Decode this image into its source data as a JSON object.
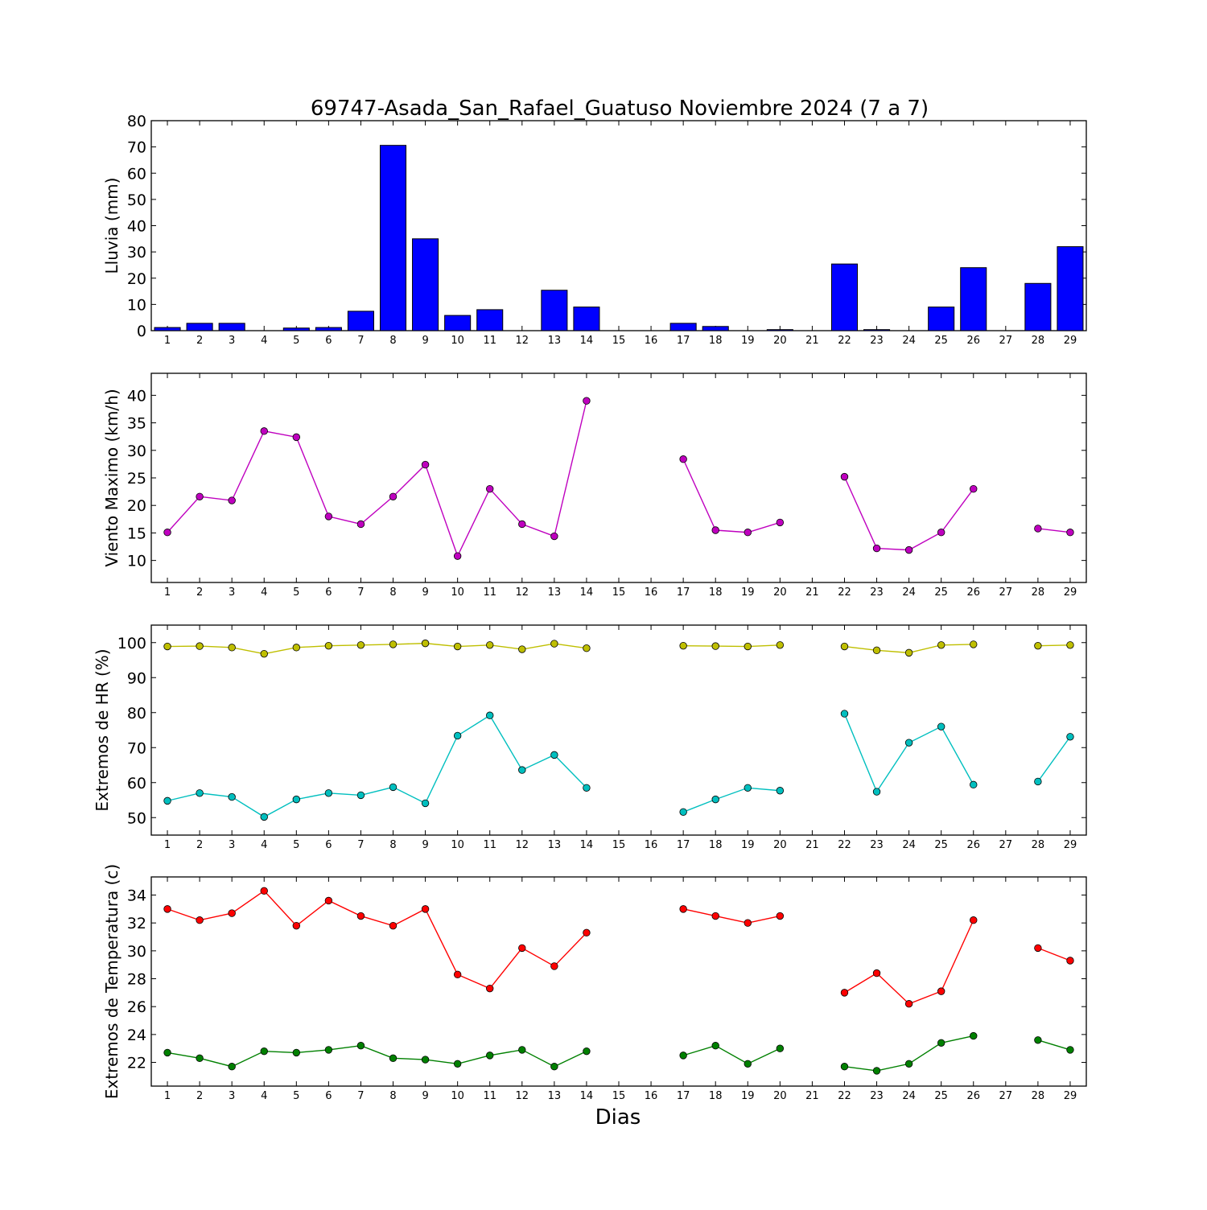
{
  "title": "69747-Asada_San_Rafael_Guatuso Noviembre 2024  (7 a 7)",
  "xlabel": "Dias",
  "colors": {
    "rain": "#0000ff",
    "wind": "#bf00bf",
    "hr_max": "#bfbf00",
    "hr_min": "#00bfbf",
    "temp_max": "#ff0000",
    "temp_min": "#008000"
  },
  "chart_data": [
    {
      "type": "bar",
      "ylabel": "Lluvia (mm)",
      "ylim": [
        0,
        80
      ],
      "yticks": [
        0,
        10,
        20,
        30,
        40,
        50,
        60,
        70,
        80
      ],
      "categories": [
        1,
        2,
        3,
        4,
        5,
        6,
        7,
        8,
        9,
        10,
        11,
        12,
        13,
        14,
        15,
        16,
        17,
        18,
        19,
        20,
        21,
        22,
        23,
        24,
        25,
        26,
        27,
        28,
        29
      ],
      "series": [
        {
          "values": [
            1.2,
            2.8,
            2.8,
            0,
            1.0,
            1.2,
            7.4,
            70.6,
            35.0,
            5.8,
            8.0,
            0,
            15.4,
            9.0,
            0,
            0,
            2.8,
            1.6,
            0,
            0.4,
            0,
            25.4,
            0.4,
            0,
            9.0,
            24.0,
            0,
            18.0,
            32.0
          ]
        }
      ]
    },
    {
      "type": "line",
      "ylabel": "Viento Maximo (km/h)",
      "ylim": [
        6,
        44
      ],
      "yticks": [
        10,
        15,
        20,
        25,
        30,
        35,
        40
      ],
      "x": [
        1,
        2,
        3,
        4,
        5,
        6,
        7,
        8,
        9,
        10,
        11,
        12,
        13,
        14,
        15,
        16,
        17,
        18,
        19,
        20,
        21,
        22,
        23,
        24,
        25,
        26,
        27,
        28,
        29
      ],
      "series": [
        {
          "values": [
            15.1,
            21.6,
            20.9,
            33.5,
            32.4,
            18.0,
            16.6,
            21.6,
            27.4,
            10.8,
            23.0,
            16.6,
            14.4,
            39.0,
            null,
            null,
            28.4,
            15.5,
            15.1,
            16.9,
            null,
            25.2,
            12.2,
            11.9,
            15.1,
            23.0,
            null,
            15.8,
            15.1
          ]
        }
      ]
    },
    {
      "type": "line",
      "ylabel": "Extremos de HR (%)",
      "ylim": [
        45,
        105
      ],
      "yticks": [
        50,
        60,
        70,
        80,
        90,
        100
      ],
      "x": [
        1,
        2,
        3,
        4,
        5,
        6,
        7,
        8,
        9,
        10,
        11,
        12,
        13,
        14,
        15,
        16,
        17,
        18,
        19,
        20,
        21,
        22,
        23,
        24,
        25,
        26,
        27,
        28,
        29
      ],
      "series": [
        {
          "values": [
            98.9,
            99.0,
            98.6,
            96.8,
            98.6,
            99.1,
            99.3,
            99.5,
            99.8,
            98.9,
            99.3,
            98.1,
            99.7,
            98.4,
            null,
            null,
            99.1,
            99.0,
            98.9,
            99.3,
            null,
            98.9,
            97.8,
            97.1,
            99.3,
            99.5,
            null,
            99.1,
            99.3
          ]
        },
        {
          "values": [
            54.8,
            57.0,
            55.9,
            50.2,
            55.2,
            57.0,
            56.4,
            58.7,
            54.1,
            73.4,
            79.2,
            63.6,
            67.9,
            58.5,
            null,
            null,
            51.6,
            55.2,
            58.5,
            57.7,
            null,
            79.7,
            57.4,
            71.4,
            76.0,
            59.4,
            null,
            60.3,
            73.1
          ]
        }
      ]
    },
    {
      "type": "line",
      "ylabel": "Extremos de Temperatura (c)",
      "ylim": [
        20.3,
        35.3
      ],
      "yticks": [
        22,
        24,
        26,
        28,
        30,
        32,
        34
      ],
      "x": [
        1,
        2,
        3,
        4,
        5,
        6,
        7,
        8,
        9,
        10,
        11,
        12,
        13,
        14,
        15,
        16,
        17,
        18,
        19,
        20,
        21,
        22,
        23,
        24,
        25,
        26,
        27,
        28,
        29
      ],
      "series": [
        {
          "values": [
            33.0,
            32.2,
            32.7,
            34.3,
            31.8,
            33.6,
            32.5,
            31.8,
            33.0,
            28.3,
            27.3,
            30.2,
            28.9,
            31.3,
            null,
            null,
            33.0,
            32.5,
            32.0,
            32.5,
            null,
            27.0,
            28.4,
            26.2,
            27.1,
            32.2,
            null,
            30.2,
            29.3
          ]
        },
        {
          "values": [
            22.7,
            22.3,
            21.7,
            22.8,
            22.7,
            22.9,
            23.2,
            22.3,
            22.2,
            21.9,
            22.5,
            22.9,
            21.7,
            22.8,
            null,
            null,
            22.5,
            23.2,
            21.9,
            23.0,
            null,
            21.7,
            21.4,
            21.9,
            23.4,
            23.9,
            null,
            23.6,
            22.9
          ]
        }
      ]
    }
  ]
}
